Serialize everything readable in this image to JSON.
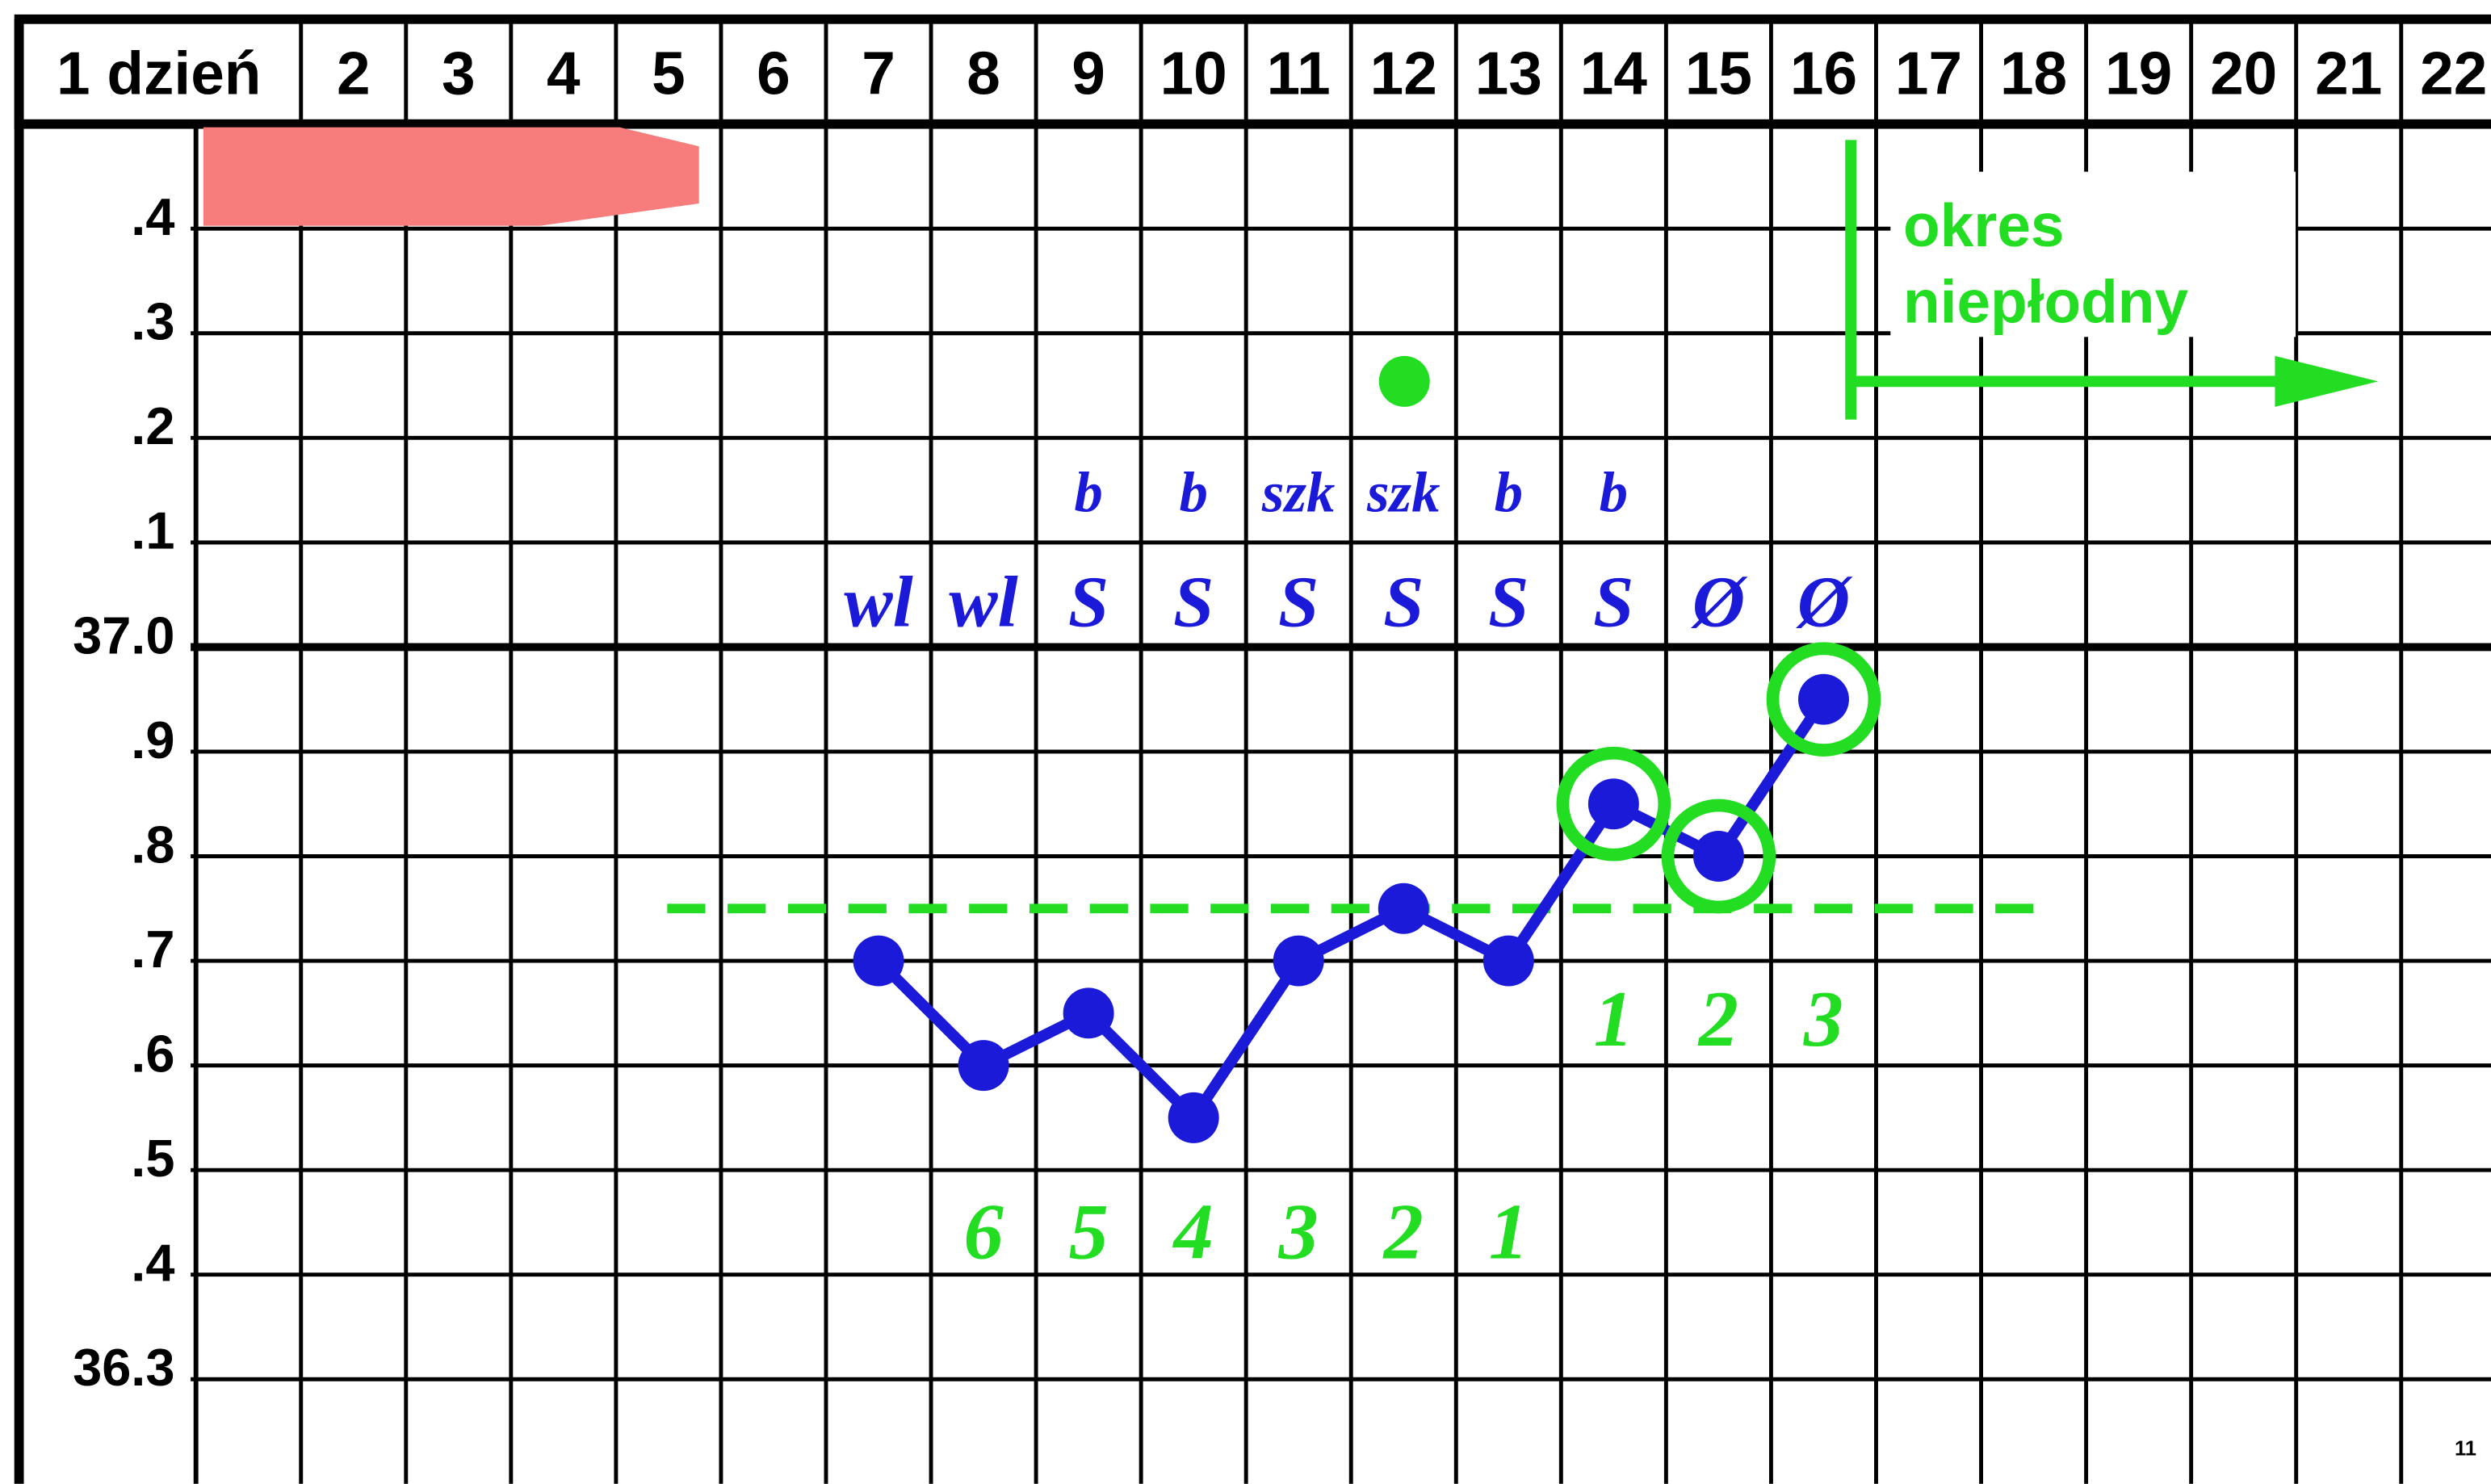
{
  "chart_data": {
    "type": "line",
    "categories": [
      "1 dzień",
      "2",
      "3",
      "4",
      "5",
      "6",
      "7",
      "8",
      "9",
      "10",
      "11",
      "12",
      "13",
      "14",
      "15",
      "16",
      "17",
      "18",
      "19",
      "20",
      "21",
      "22"
    ],
    "values": [
      null,
      null,
      null,
      null,
      null,
      null,
      36.7,
      36.6,
      36.65,
      36.55,
      36.7,
      36.75,
      36.7,
      36.85,
      36.8,
      36.95,
      null,
      null,
      null,
      null,
      null,
      null
    ],
    "color": "#1a1ad8",
    "ylim": [
      36.2,
      37.5
    ],
    "yticks": [
      {
        "value": 37.4,
        "label": ".4"
      },
      {
        "value": 37.3,
        "label": ".3"
      },
      {
        "value": 37.2,
        "label": ".2"
      },
      {
        "value": 37.1,
        "label": ".1"
      },
      {
        "value": 37.0,
        "label": "37.0"
      },
      {
        "value": 36.9,
        "label": ".9"
      },
      {
        "value": 36.8,
        "label": ".8"
      },
      {
        "value": 36.7,
        "label": ".7"
      },
      {
        "value": 36.6,
        "label": ".6"
      },
      {
        "value": 36.5,
        "label": ".5"
      },
      {
        "value": 36.4,
        "label": ".4"
      },
      36.3
    ],
    "grid": true,
    "cover_line": {
      "value": 36.75,
      "color": "#22dd22"
    },
    "mucus_quality": [
      null,
      null,
      null,
      null,
      null,
      null,
      null,
      null,
      "b",
      "b",
      "szk",
      "szk",
      "b",
      "b",
      null,
      null,
      null,
      null,
      null,
      null,
      null,
      null
    ],
    "mucus_type": [
      null,
      null,
      null,
      null,
      null,
      null,
      "wl",
      "wl",
      "S",
      "S",
      "S",
      "S",
      "S",
      "S",
      "Ø",
      "Ø",
      null,
      null,
      null,
      null,
      null,
      null
    ],
    "count_before": [
      null,
      null,
      null,
      null,
      null,
      null,
      null,
      6,
      5,
      4,
      3,
      2,
      1,
      null,
      null,
      null,
      null,
      null,
      null,
      null,
      null,
      null
    ],
    "count_after": [
      null,
      null,
      null,
      null,
      null,
      null,
      null,
      null,
      null,
      null,
      null,
      null,
      null,
      1,
      2,
      3,
      null,
      null,
      null,
      null,
      null,
      null
    ],
    "annotation": [
      "okres",
      "niepłodny"
    ],
    "page_number": "11"
  }
}
